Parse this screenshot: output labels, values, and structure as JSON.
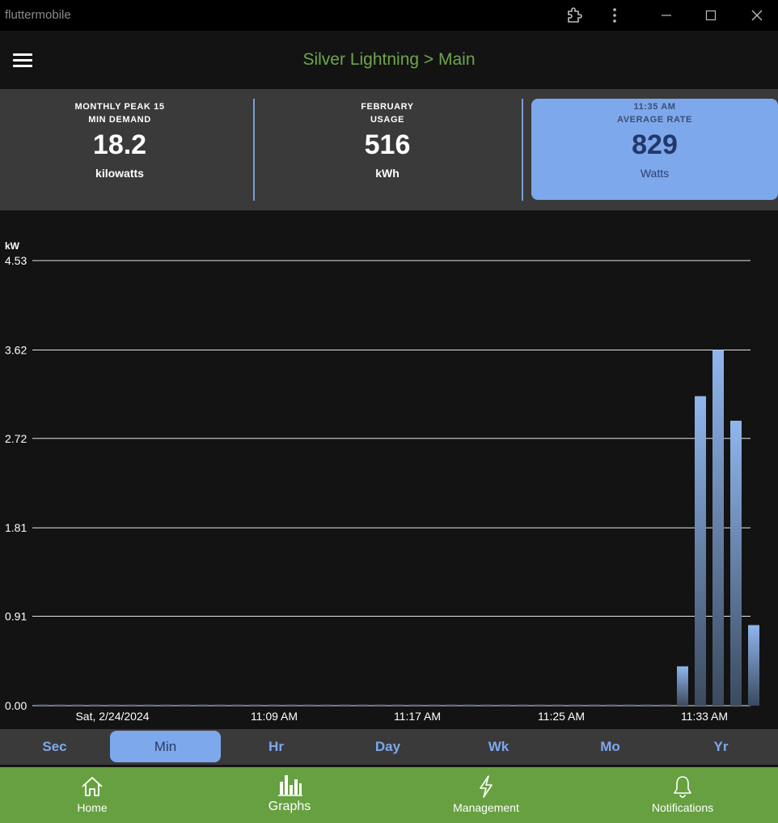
{
  "window": {
    "title": "fluttermobile"
  },
  "header": {
    "title": "Silver Lightning > Main"
  },
  "stats": [
    {
      "label_line1": "MONTHLY PEAK 15",
      "label_line2": "MIN DEMAND",
      "value": "18.2",
      "unit": "kilowatts"
    },
    {
      "label_line1": "FEBRUARY",
      "label_line2": "USAGE",
      "value": "516",
      "unit": "kWh"
    },
    {
      "label_line1": "11:35 AM",
      "label_line2": "AVERAGE RATE",
      "value": "829",
      "unit": "Watts"
    }
  ],
  "chart_data": {
    "type": "bar",
    "ylabel": "kW",
    "ylim": [
      0,
      4.53
    ],
    "yticks": [
      "4.53",
      "3.62",
      "2.72",
      "1.81",
      "0.91",
      "0.00"
    ],
    "xtick_labels": [
      "Sat, 2/24/2024",
      "11:09 AM",
      "11:17 AM",
      "11:25 AM",
      "11:33 AM"
    ],
    "series": [
      {
        "values": [
          0.01,
          0.01,
          0.01,
          0.01,
          0.01,
          0.01,
          0.01,
          0.01,
          0.01,
          0.01,
          0.01,
          0.01,
          0.01,
          0.01,
          0.01,
          0.01,
          0.01,
          0.01,
          0.01,
          0.01,
          0.01,
          0.01,
          0.01,
          0.01,
          0.01,
          0.01,
          0.01,
          0.01,
          0.01,
          0.01,
          0.01,
          0.01,
          0.01,
          0.01,
          0.01,
          0.01,
          0.4,
          3.15,
          3.62,
          2.9,
          0.82
        ]
      }
    ],
    "grid": true,
    "bar_color": "#7da8ec"
  },
  "range": {
    "buttons": [
      "Sec",
      "Min",
      "Hr",
      "Day",
      "Wk",
      "Mo",
      "Yr"
    ],
    "active": "Min"
  },
  "nav": {
    "items": [
      {
        "label": "Home",
        "icon": "home-icon"
      },
      {
        "label": "Graphs",
        "icon": "bar-chart-icon"
      },
      {
        "label": "Management",
        "icon": "lightning-icon"
      },
      {
        "label": "Notifications",
        "icon": "bell-icon"
      }
    ]
  },
  "colors": {
    "accent": "#7da8ec",
    "brand_green": "#67a040",
    "header_green": "#6ea54a"
  }
}
